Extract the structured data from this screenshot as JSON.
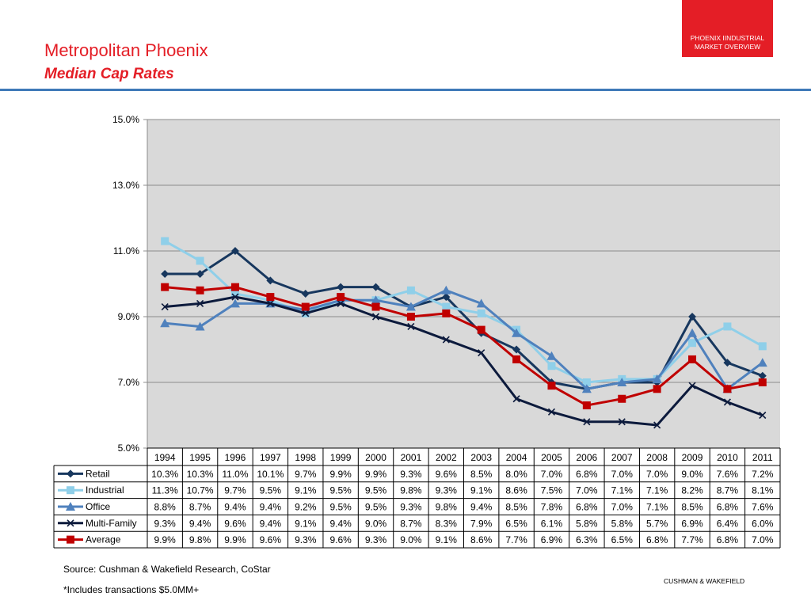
{
  "header": {
    "title": "Metropolitan Phoenix",
    "subtitle": "Median Cap Rates",
    "badge_line1": "PHOENIX IINDUSTRIAL",
    "badge_line2": "MARKET OVERVIEW"
  },
  "footer": {
    "source": "Source: Cushman & Wakefield Research, CoStar",
    "note": "*Includes transactions $5.0MM+",
    "brand": "CUSHMAN & WAKEFIELD"
  },
  "colors": {
    "accent": "#e41e26",
    "rule": "#3f79b8",
    "plot_bg": "#d9d9d9"
  },
  "chart_data": {
    "type": "line",
    "categories": [
      "1994",
      "1995",
      "1996",
      "1997",
      "1998",
      "1999",
      "2000",
      "2001",
      "2002",
      "2003",
      "2004",
      "2005",
      "2006",
      "2007",
      "2008",
      "2009",
      "2010",
      "2011"
    ],
    "ylim": [
      5.0,
      15.0
    ],
    "yticks": [
      5.0,
      7.0,
      9.0,
      11.0,
      13.0,
      15.0
    ],
    "ytick_labels": [
      "5.0%",
      "7.0%",
      "9.0%",
      "11.0%",
      "13.0%",
      "15.0%"
    ],
    "grid": true,
    "legend": "data-table",
    "series": [
      {
        "name": "Retail",
        "color": "#17375e",
        "marker": "diamond",
        "values": [
          10.3,
          10.3,
          11.0,
          10.1,
          9.7,
          9.9,
          9.9,
          9.3,
          9.6,
          8.5,
          8.0,
          7.0,
          6.8,
          7.0,
          7.0,
          9.0,
          7.6,
          7.2
        ],
        "labels": [
          "10.3%",
          "10.3%",
          "11.0%",
          "10.1%",
          "9.7%",
          "9.9%",
          "9.9%",
          "9.3%",
          "9.6%",
          "8.5%",
          "8.0%",
          "7.0%",
          "6.8%",
          "7.0%",
          "7.0%",
          "9.0%",
          "7.6%",
          "7.2%"
        ]
      },
      {
        "name": "Industrial",
        "color": "#8fcfe9",
        "marker": "square",
        "values": [
          11.3,
          10.7,
          9.7,
          9.5,
          9.1,
          9.5,
          9.5,
          9.8,
          9.3,
          9.1,
          8.6,
          7.5,
          7.0,
          7.1,
          7.1,
          8.2,
          8.7,
          8.1
        ],
        "labels": [
          "11.3%",
          "10.7%",
          "9.7%",
          "9.5%",
          "9.1%",
          "9.5%",
          "9.5%",
          "9.8%",
          "9.3%",
          "9.1%",
          "8.6%",
          "7.5%",
          "7.0%",
          "7.1%",
          "7.1%",
          "8.2%",
          "8.7%",
          "8.1%"
        ]
      },
      {
        "name": "Office",
        "color": "#4f81bd",
        "marker": "triangle",
        "values": [
          8.8,
          8.7,
          9.4,
          9.4,
          9.2,
          9.5,
          9.5,
          9.3,
          9.8,
          9.4,
          8.5,
          7.8,
          6.8,
          7.0,
          7.1,
          8.5,
          6.8,
          7.6
        ],
        "labels": [
          "8.8%",
          "8.7%",
          "9.4%",
          "9.4%",
          "9.2%",
          "9.5%",
          "9.5%",
          "9.3%",
          "9.8%",
          "9.4%",
          "8.5%",
          "7.8%",
          "6.8%",
          "7.0%",
          "7.1%",
          "8.5%",
          "6.8%",
          "7.6%"
        ]
      },
      {
        "name": "Multi-Family",
        "color": "#0c1a3c",
        "marker": "x",
        "values": [
          9.3,
          9.4,
          9.6,
          9.4,
          9.1,
          9.4,
          9.0,
          8.7,
          8.3,
          7.9,
          6.5,
          6.1,
          5.8,
          5.8,
          5.7,
          6.9,
          6.4,
          6.0
        ],
        "labels": [
          "9.3%",
          "9.4%",
          "9.6%",
          "9.4%",
          "9.1%",
          "9.4%",
          "9.0%",
          "8.7%",
          "8.3%",
          "7.9%",
          "6.5%",
          "6.1%",
          "5.8%",
          "5.8%",
          "5.7%",
          "6.9%",
          "6.4%",
          "6.0%"
        ]
      },
      {
        "name": "Average",
        "color": "#c00000",
        "marker": "square",
        "values": [
          9.9,
          9.8,
          9.9,
          9.6,
          9.3,
          9.6,
          9.3,
          9.0,
          9.1,
          8.6,
          7.7,
          6.9,
          6.3,
          6.5,
          6.8,
          7.7,
          6.8,
          7.0
        ],
        "labels": [
          "9.9%",
          "9.8%",
          "9.9%",
          "9.6%",
          "9.3%",
          "9.6%",
          "9.3%",
          "9.0%",
          "9.1%",
          "8.6%",
          "7.7%",
          "6.9%",
          "6.3%",
          "6.5%",
          "6.8%",
          "7.7%",
          "6.8%",
          "7.0%"
        ]
      }
    ]
  }
}
